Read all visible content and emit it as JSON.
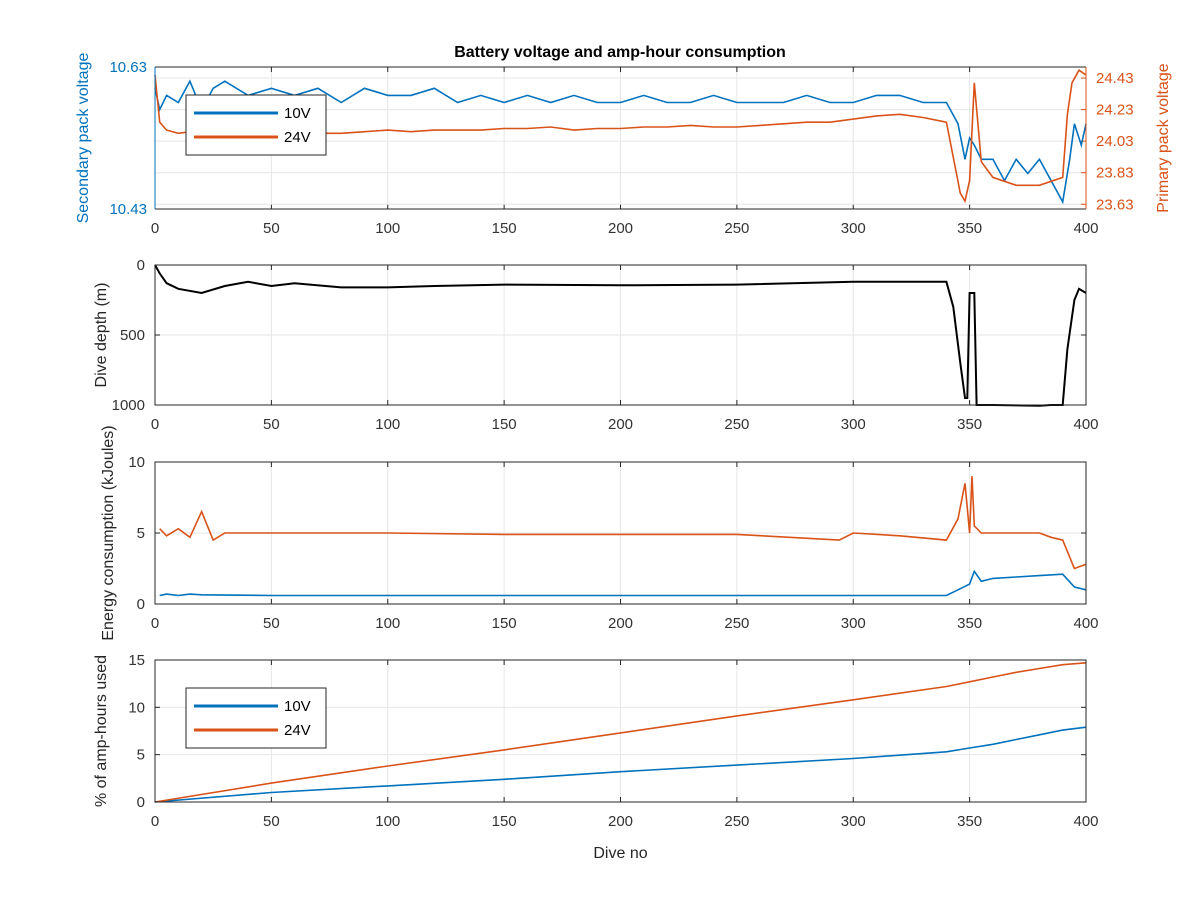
{
  "title": "Battery voltage and amp-hour consumption",
  "colors": {
    "c10": "#0072BD",
    "c24": "#D95319",
    "depth": "#000000",
    "grid": "#e6e6e6"
  },
  "x_ticks": [
    "0",
    "50",
    "100",
    "150",
    "200",
    "250",
    "300",
    "350",
    "400"
  ],
  "x_label_bottom": "Dive no",
  "chart_data": [
    {
      "type": "line",
      "title": "Battery voltage and amp-hour consumption",
      "xlim": [
        0,
        400
      ],
      "grid": true,
      "legend_position": "top-left",
      "left_axis": {
        "label": "Secondary pack voltage",
        "ylim": [
          10.43,
          10.63
        ],
        "tick_values": [
          10.43,
          10.63
        ],
        "tick_labels": [
          "10.43",
          "10.63"
        ]
      },
      "right_axis": {
        "label": "Primary pack voltage",
        "ylim": [
          23.6,
          24.5
        ],
        "tick_values": [
          23.63,
          23.83,
          24.03,
          24.23,
          24.43
        ],
        "tick_labels": [
          "23.63",
          "23.83",
          "24.03",
          "24.23",
          "24.43"
        ]
      },
      "series": [
        {
          "name": "10V",
          "axis": "left",
          "x": [
            0,
            2,
            5,
            10,
            15,
            20,
            25,
            30,
            40,
            50,
            60,
            70,
            80,
            90,
            100,
            110,
            120,
            130,
            140,
            150,
            160,
            170,
            180,
            190,
            200,
            210,
            220,
            230,
            240,
            250,
            260,
            270,
            280,
            290,
            300,
            310,
            320,
            330,
            340,
            345,
            348,
            350,
            352,
            355,
            360,
            365,
            370,
            375,
            380,
            385,
            390,
            393,
            395,
            398,
            400
          ],
          "y": [
            10.6,
            10.57,
            10.59,
            10.58,
            10.61,
            10.57,
            10.6,
            10.61,
            10.59,
            10.6,
            10.59,
            10.6,
            10.58,
            10.6,
            10.59,
            10.59,
            10.6,
            10.58,
            10.59,
            10.58,
            10.59,
            10.58,
            10.59,
            10.58,
            10.58,
            10.59,
            10.58,
            10.58,
            10.59,
            10.58,
            10.58,
            10.58,
            10.59,
            10.58,
            10.58,
            10.59,
            10.59,
            10.58,
            10.58,
            10.55,
            10.5,
            10.53,
            10.52,
            10.5,
            10.5,
            10.47,
            10.5,
            10.48,
            10.5,
            10.47,
            10.44,
            10.5,
            10.55,
            10.52,
            10.55
          ]
        },
        {
          "name": "24V",
          "axis": "right",
          "x": [
            0,
            2,
            5,
            10,
            20,
            30,
            40,
            50,
            60,
            70,
            80,
            90,
            100,
            110,
            120,
            130,
            140,
            150,
            160,
            170,
            180,
            190,
            200,
            210,
            220,
            230,
            240,
            250,
            260,
            270,
            280,
            290,
            300,
            310,
            320,
            330,
            340,
            344,
            346,
            348,
            350,
            352,
            355,
            360,
            370,
            380,
            390,
            392,
            394,
            397,
            400
          ],
          "y": [
            24.45,
            24.15,
            24.1,
            24.08,
            24.1,
            24.05,
            24.07,
            24.08,
            24.07,
            24.08,
            24.08,
            24.09,
            24.1,
            24.09,
            24.1,
            24.1,
            24.1,
            24.11,
            24.11,
            24.12,
            24.1,
            24.11,
            24.11,
            24.12,
            24.12,
            24.13,
            24.12,
            24.12,
            24.13,
            24.14,
            24.15,
            24.15,
            24.17,
            24.19,
            24.2,
            24.18,
            24.15,
            23.85,
            23.7,
            23.65,
            23.78,
            24.4,
            23.9,
            23.8,
            23.75,
            23.75,
            23.8,
            24.2,
            24.4,
            24.48,
            24.45
          ]
        }
      ]
    },
    {
      "type": "line",
      "xlim": [
        0,
        400
      ],
      "ylabel": "Dive depth (m)",
      "ylim": [
        0,
        1000
      ],
      "y_reversed": true,
      "y_ticks": [
        "0",
        "500",
        "1000"
      ],
      "grid": true,
      "series": [
        {
          "x": [
            0,
            2,
            5,
            10,
            20,
            30,
            40,
            50,
            60,
            80,
            100,
            120,
            150,
            200,
            250,
            300,
            340,
            343,
            346,
            348,
            349,
            350,
            351,
            352,
            353,
            355,
            360,
            380,
            385,
            390,
            392,
            395,
            397,
            400
          ],
          "y": [
            0,
            60,
            130,
            170,
            200,
            150,
            120,
            150,
            130,
            160,
            160,
            150,
            140,
            145,
            140,
            120,
            120,
            300,
            700,
            950,
            950,
            200,
            200,
            200,
            1000,
            1000,
            1000,
            1005,
            1000,
            1000,
            600,
            250,
            170,
            200
          ]
        }
      ]
    },
    {
      "type": "line",
      "xlim": [
        0,
        400
      ],
      "ylabel": "Energy consumption (kJoules)",
      "ylim": [
        0,
        10
      ],
      "y_ticks": [
        "0",
        "5",
        "10"
      ],
      "grid": true,
      "series": [
        {
          "name": "10V",
          "x": [
            2,
            5,
            10,
            15,
            20,
            50,
            100,
            150,
            200,
            250,
            295,
            300,
            320,
            340,
            345,
            350,
            352,
            355,
            360,
            370,
            380,
            390,
            395,
            400
          ],
          "y": [
            0.6,
            0.7,
            0.6,
            0.7,
            0.65,
            0.6,
            0.6,
            0.6,
            0.6,
            0.6,
            0.6,
            0.6,
            0.6,
            0.6,
            1.0,
            1.4,
            2.3,
            1.6,
            1.8,
            1.9,
            2.0,
            2.1,
            1.2,
            1.0
          ]
        },
        {
          "name": "24V",
          "x": [
            2,
            5,
            10,
            15,
            20,
            25,
            30,
            50,
            100,
            150,
            200,
            250,
            294,
            300,
            320,
            340,
            345,
            348,
            350,
            351,
            352,
            355,
            360,
            370,
            380,
            385,
            390,
            395,
            400
          ],
          "y": [
            5.3,
            4.8,
            5.3,
            4.7,
            6.5,
            4.5,
            5.0,
            5.0,
            5.0,
            4.9,
            4.9,
            4.9,
            4.5,
            5.0,
            4.8,
            4.5,
            6.0,
            8.5,
            5.0,
            9.0,
            5.5,
            5.0,
            5.0,
            5.0,
            5.0,
            4.7,
            4.5,
            2.5,
            2.8
          ]
        }
      ]
    },
    {
      "type": "line",
      "xlim": [
        0,
        400
      ],
      "xlabel": "Dive no",
      "ylabel": "% of amp-hours used",
      "ylim": [
        0,
        15
      ],
      "y_ticks": [
        "0",
        "5",
        "10",
        "15"
      ],
      "grid": true,
      "legend_position": "top-left",
      "series": [
        {
          "name": "10V",
          "x": [
            0,
            50,
            100,
            150,
            200,
            250,
            300,
            340,
            350,
            360,
            370,
            380,
            390,
            400
          ],
          "y": [
            0,
            1.0,
            1.7,
            2.4,
            3.2,
            3.9,
            4.6,
            5.3,
            5.7,
            6.1,
            6.6,
            7.1,
            7.6,
            7.9
          ]
        },
        {
          "name": "24V",
          "x": [
            0,
            50,
            100,
            150,
            200,
            250,
            300,
            340,
            350,
            360,
            370,
            380,
            390,
            400
          ],
          "y": [
            0,
            2.0,
            3.8,
            5.5,
            7.3,
            9.1,
            10.8,
            12.2,
            12.7,
            13.2,
            13.7,
            14.1,
            14.5,
            14.7
          ]
        }
      ]
    }
  ]
}
